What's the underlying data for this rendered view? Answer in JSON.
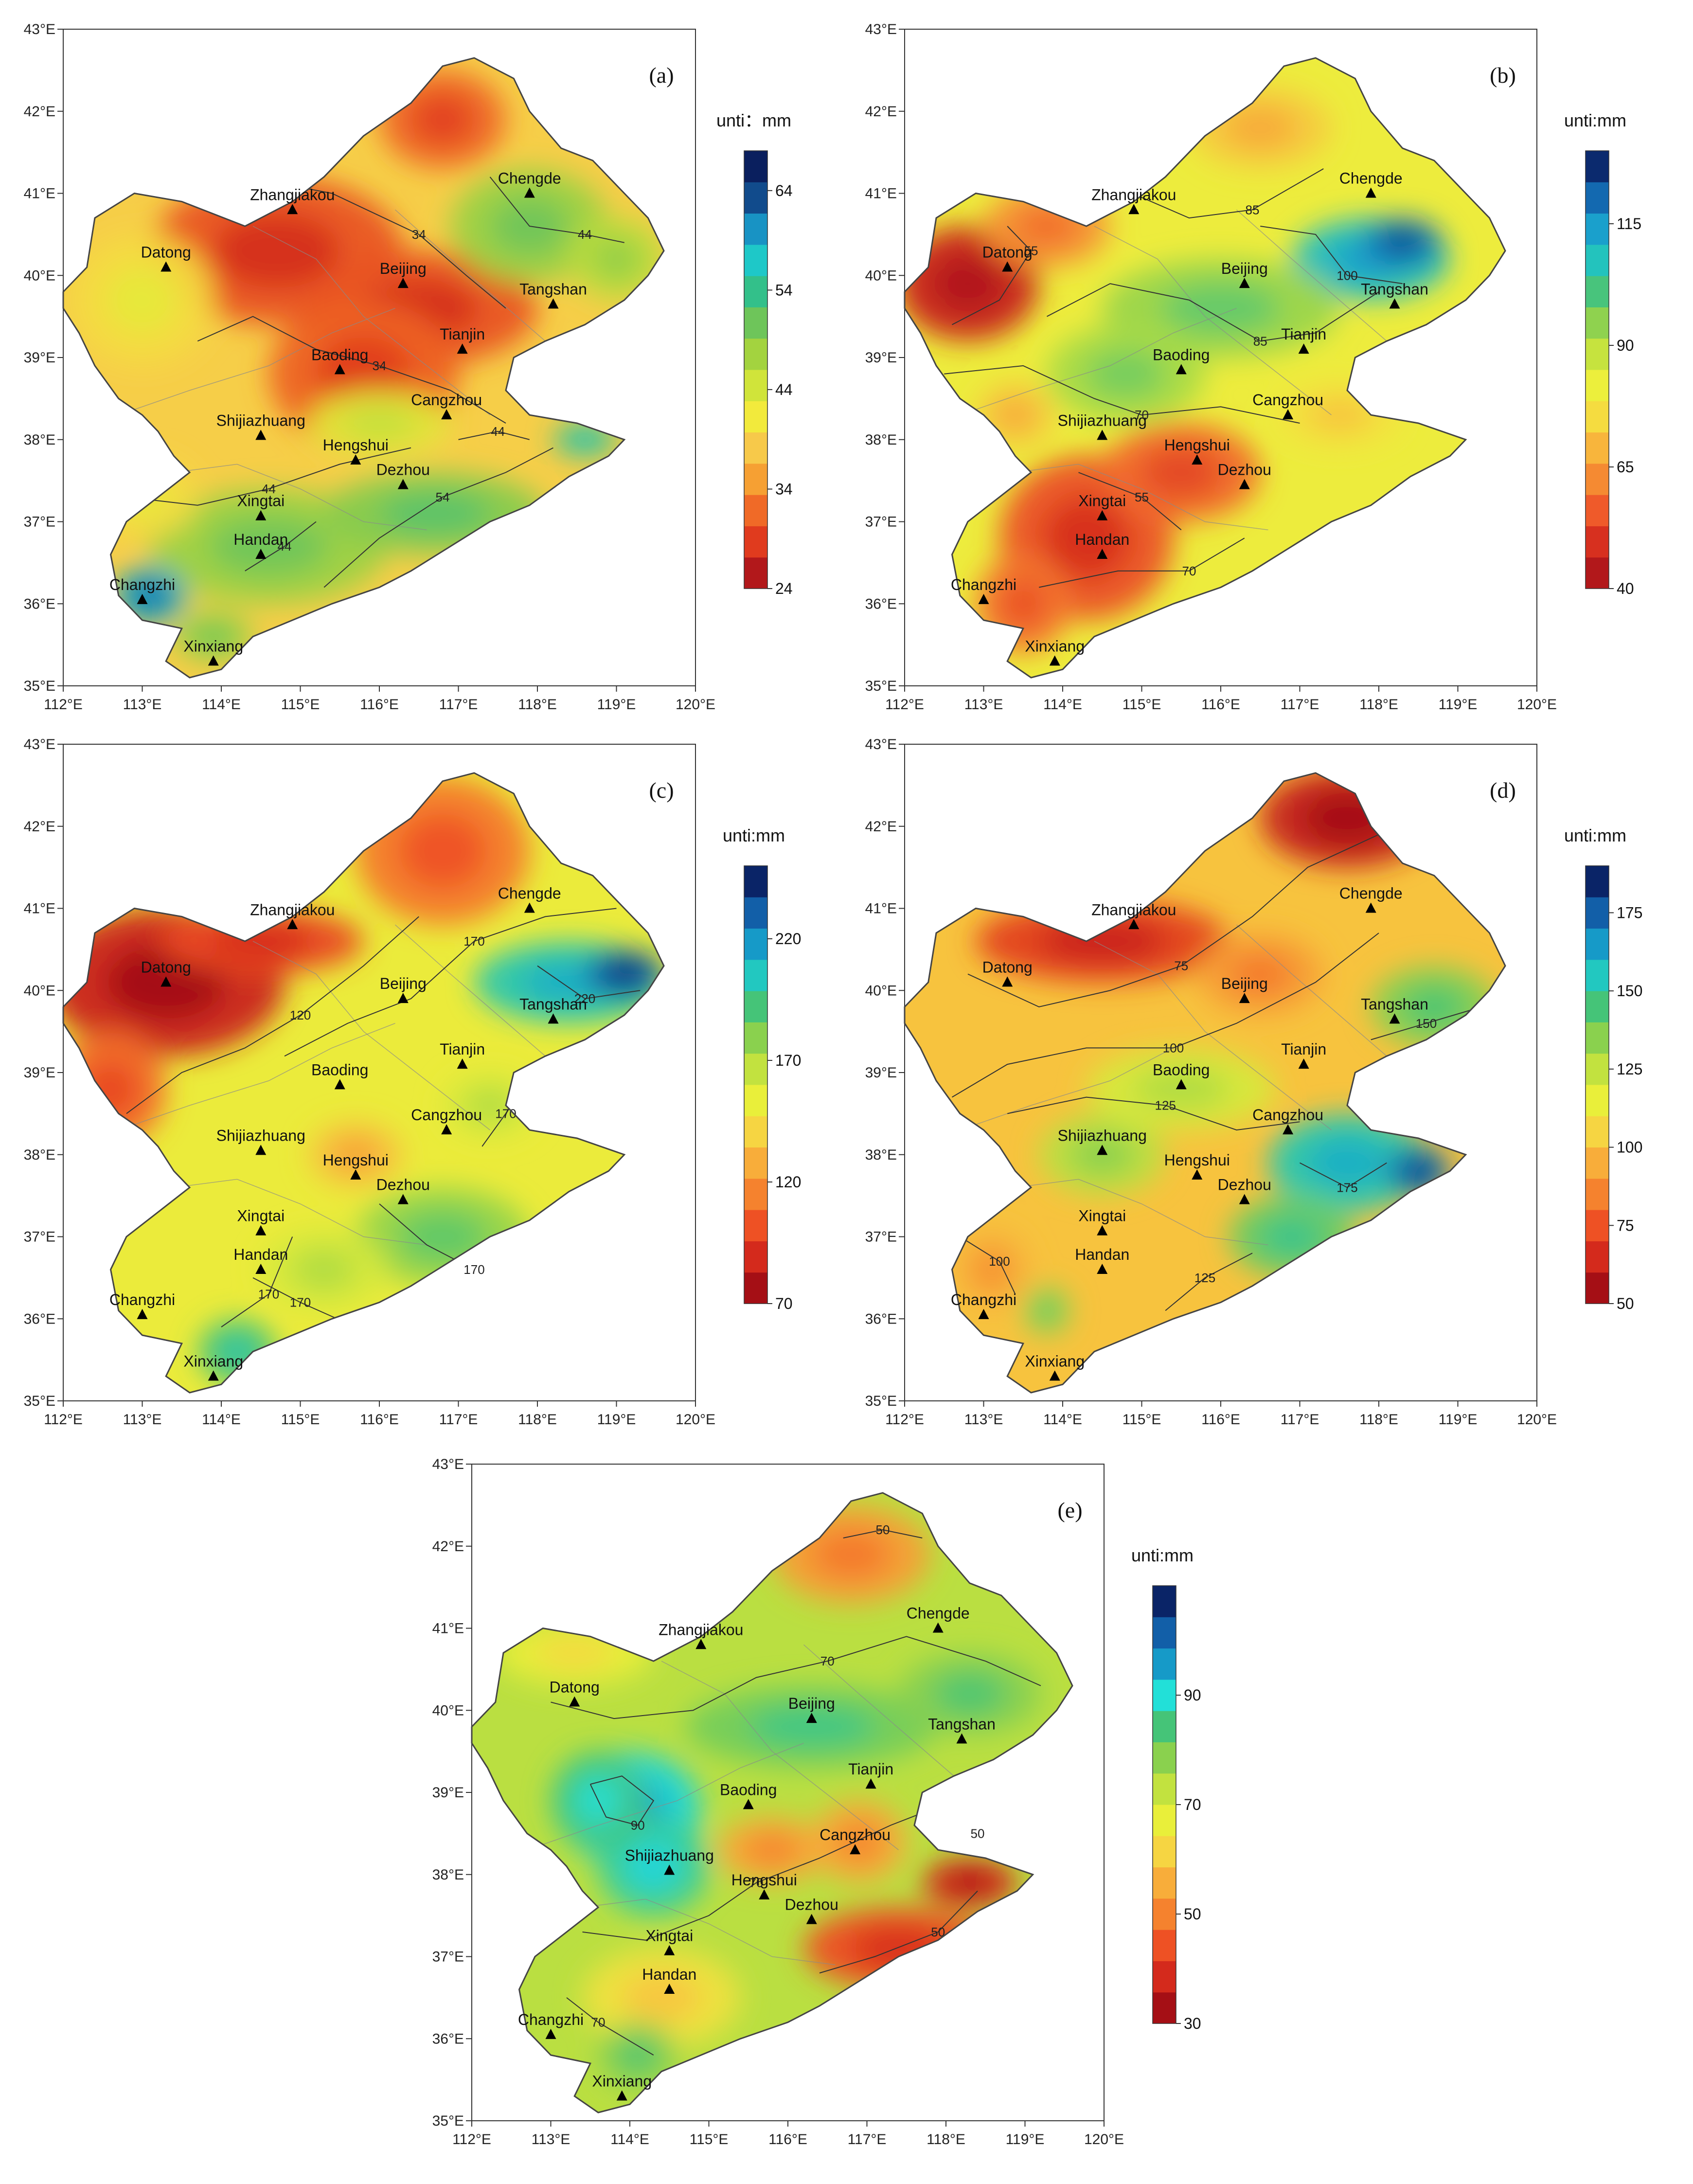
{
  "lon_labels": [
    "112°E",
    "113°E",
    "114°E",
    "115°E",
    "116°E",
    "117°E",
    "118°E",
    "119°E",
    "120°E"
  ],
  "lat_labels": [
    "35°E",
    "36°E",
    "37°E",
    "38°E",
    "39°E",
    "40°E",
    "41°E",
    "42°E",
    "43°E"
  ],
  "cities": [
    {
      "name": "Zhangjiakou",
      "lon": 114.9,
      "lat": 40.8
    },
    {
      "name": "Datong",
      "lon": 113.3,
      "lat": 40.1
    },
    {
      "name": "Beijing",
      "lon": 116.3,
      "lat": 39.9
    },
    {
      "name": "Chengde",
      "lon": 117.9,
      "lat": 41.0
    },
    {
      "name": "Tangshan",
      "lon": 118.2,
      "lat": 39.65
    },
    {
      "name": "Tianjin",
      "lon": 117.05,
      "lat": 39.1
    },
    {
      "name": "Baoding",
      "lon": 115.5,
      "lat": 38.85
    },
    {
      "name": "Cangzhou",
      "lon": 116.85,
      "lat": 38.3
    },
    {
      "name": "Shijiazhuang",
      "lon": 114.5,
      "lat": 38.05
    },
    {
      "name": "Hengshui",
      "lon": 115.7,
      "lat": 37.75
    },
    {
      "name": "Dezhou",
      "lon": 116.3,
      "lat": 37.45
    },
    {
      "name": "Xingtai",
      "lon": 114.5,
      "lat": 37.07
    },
    {
      "name": "Handan",
      "lon": 114.5,
      "lat": 36.6
    },
    {
      "name": "Changzhi",
      "lon": 113.0,
      "lat": 36.05
    },
    {
      "name": "Xinxiang",
      "lon": 113.9,
      "lat": 35.3
    }
  ],
  "panels": [
    {
      "id": "a",
      "label": "(a)",
      "unit": "unti：mm",
      "cbar_min": 24,
      "cbar_max": 68,
      "ticks": [
        24,
        34,
        44,
        54,
        64
      ],
      "contours": [
        "34",
        "34",
        "44",
        "44",
        "54",
        "44",
        "44"
      ],
      "palette": "a"
    },
    {
      "id": "b",
      "label": "(b)",
      "unit": "unti:mm",
      "cbar_min": 40,
      "cbar_max": 130,
      "ticks": [
        40,
        65,
        90,
        115
      ],
      "contours": [
        "55",
        "70",
        "85",
        "100",
        "85",
        "70",
        "55"
      ],
      "palette": "b"
    },
    {
      "id": "c",
      "label": "(c)",
      "unit": "unti:mm",
      "cbar_min": 70,
      "cbar_max": 250,
      "ticks": [
        70,
        120,
        170,
        220
      ],
      "contours": [
        "120",
        "170",
        "220",
        "170",
        "170",
        "170",
        "170"
      ],
      "palette": "c"
    },
    {
      "id": "d",
      "label": "(d)",
      "unit": "unti:mm",
      "cbar_min": 50,
      "cbar_max": 190,
      "ticks": [
        50,
        75,
        100,
        125,
        150,
        175
      ],
      "contours": [
        "75",
        "100",
        "125",
        "150",
        "175",
        "100",
        "125"
      ],
      "palette": "d"
    },
    {
      "id": "e",
      "label": "(e)",
      "unit": "unti:mm",
      "cbar_min": 30,
      "cbar_max": 110,
      "ticks": [
        30,
        50,
        70,
        90
      ],
      "contours": [
        "50",
        "70",
        "90",
        "70",
        "50",
        "70",
        "50"
      ],
      "palette": "e"
    }
  ]
}
